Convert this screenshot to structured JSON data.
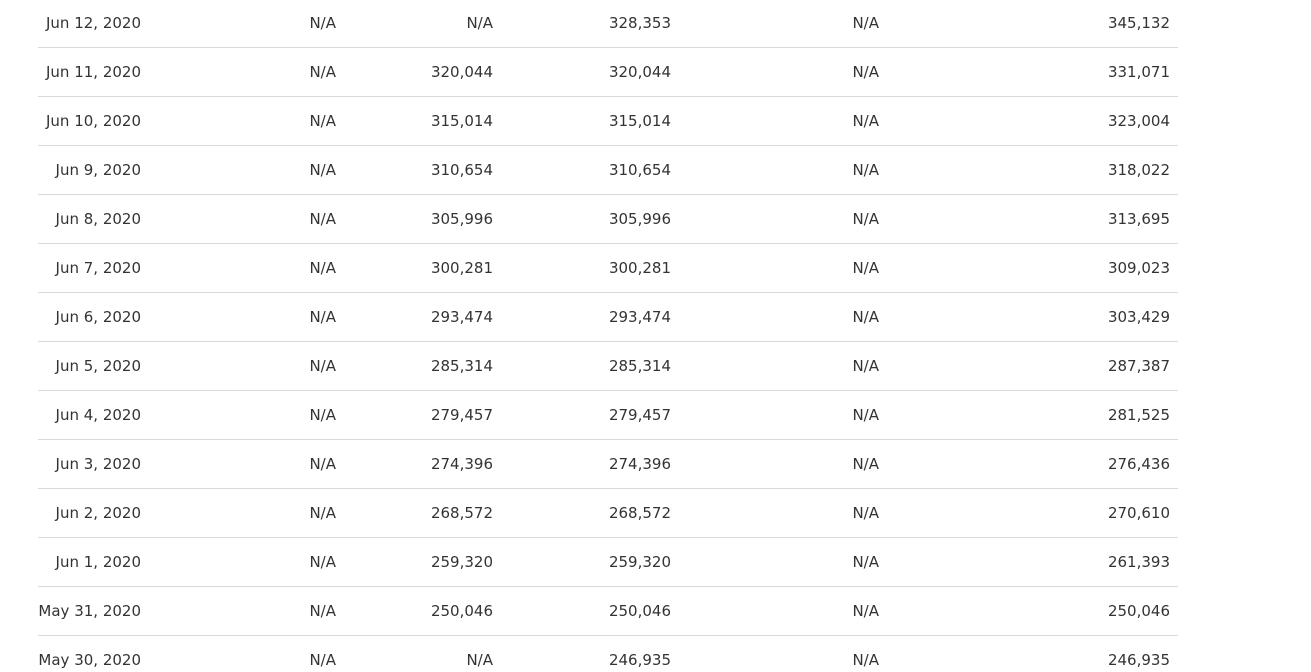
{
  "table": {
    "rows": [
      [
        "Jun 12, 2020",
        "N/A",
        "N/A",
        "328,353",
        "N/A",
        "345,132"
      ],
      [
        "Jun 11, 2020",
        "N/A",
        "320,044",
        "320,044",
        "N/A",
        "331,071"
      ],
      [
        "Jun 10, 2020",
        "N/A",
        "315,014",
        "315,014",
        "N/A",
        "323,004"
      ],
      [
        "Jun 9, 2020",
        "N/A",
        "310,654",
        "310,654",
        "N/A",
        "318,022"
      ],
      [
        "Jun 8, 2020",
        "N/A",
        "305,996",
        "305,996",
        "N/A",
        "313,695"
      ],
      [
        "Jun 7, 2020",
        "N/A",
        "300,281",
        "300,281",
        "N/A",
        "309,023"
      ],
      [
        "Jun 6, 2020",
        "N/A",
        "293,474",
        "293,474",
        "N/A",
        "303,429"
      ],
      [
        "Jun 5, 2020",
        "N/A",
        "285,314",
        "285,314",
        "N/A",
        "287,387"
      ],
      [
        "Jun 4, 2020",
        "N/A",
        "279,457",
        "279,457",
        "N/A",
        "281,525"
      ],
      [
        "Jun 3, 2020",
        "N/A",
        "274,396",
        "274,396",
        "N/A",
        "276,436"
      ],
      [
        "Jun 2, 2020",
        "N/A",
        "268,572",
        "268,572",
        "N/A",
        "270,610"
      ],
      [
        "Jun 1, 2020",
        "N/A",
        "259,320",
        "259,320",
        "N/A",
        "261,393"
      ],
      [
        "May 31, 2020",
        "N/A",
        "250,046",
        "250,046",
        "N/A",
        "250,046"
      ],
      [
        "May 30, 2020",
        "N/A",
        "N/A",
        "246,935",
        "N/A",
        "246,935"
      ]
    ]
  }
}
